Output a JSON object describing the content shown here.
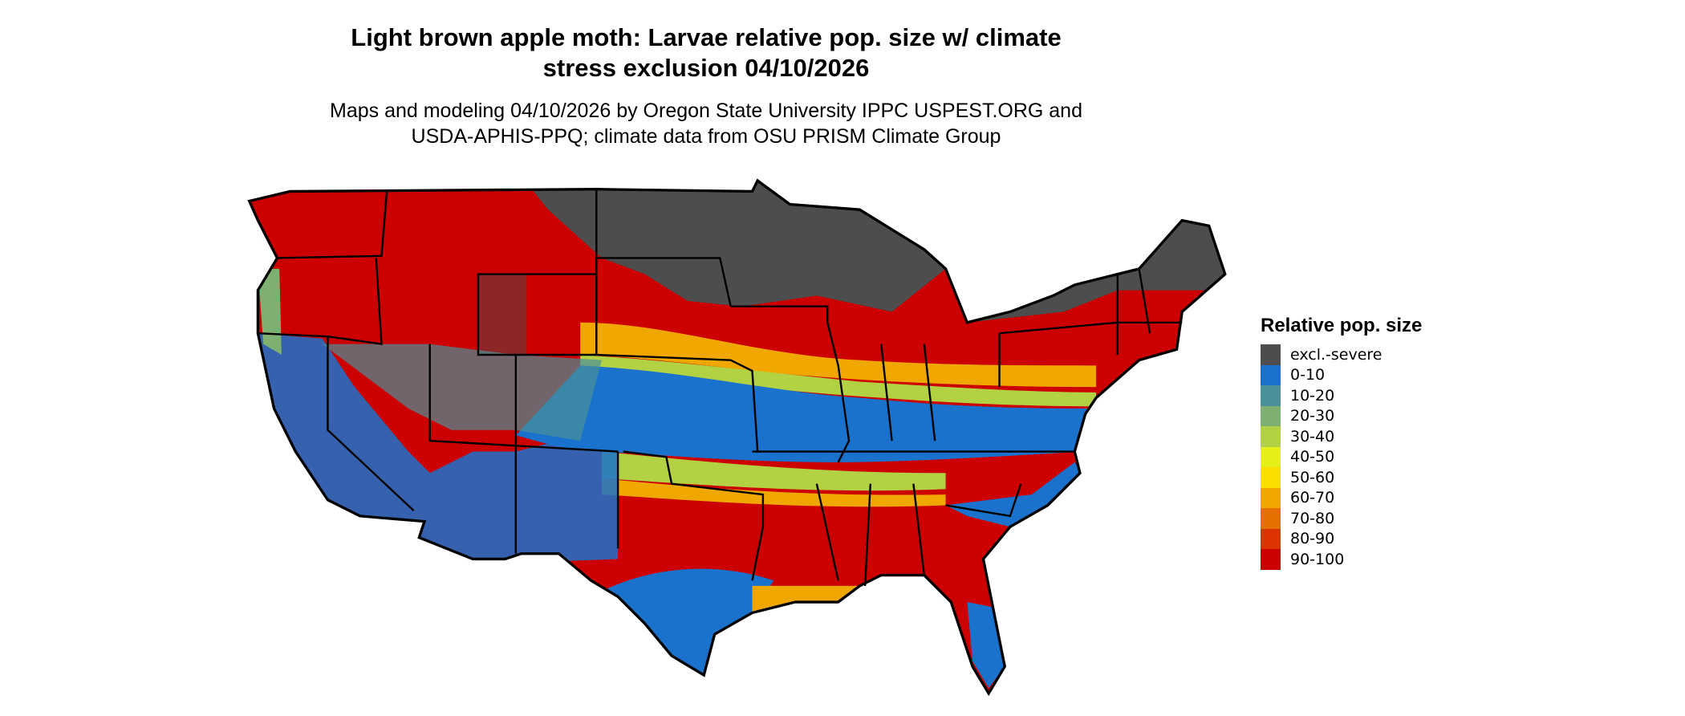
{
  "title_line1": "Light brown apple moth: Larvae relative pop. size w/ climate",
  "title_line2": "stress exclusion 04/10/2026",
  "subtitle_line1": "Maps and modeling 04/10/2026 by Oregon State University IPPC USPEST.ORG and",
  "subtitle_line2": "USDA-APHIS-PPQ; climate data from OSU PRISM Climate Group",
  "chart_data": {
    "type": "heatmap",
    "region": "Contiguous United States",
    "legend": {
      "title": "Relative pop. size",
      "placement": "right",
      "items": [
        {
          "label": "excl.-severe",
          "color": "#4d4d4d"
        },
        {
          "label": "0-10",
          "color": "#1a72cc"
        },
        {
          "label": "10-20",
          "color": "#4a9099"
        },
        {
          "label": "20-30",
          "color": "#7db071"
        },
        {
          "label": "30-40",
          "color": "#b2d143"
        },
        {
          "label": "40-50",
          "color": "#e6f016"
        },
        {
          "label": "50-60",
          "color": "#f9e000"
        },
        {
          "label": "60-70",
          "color": "#f0a800"
        },
        {
          "label": "70-80",
          "color": "#e57000"
        },
        {
          "label": "80-90",
          "color": "#dd3300"
        },
        {
          "label": "90-100",
          "color": "#cc0000"
        }
      ]
    }
  }
}
